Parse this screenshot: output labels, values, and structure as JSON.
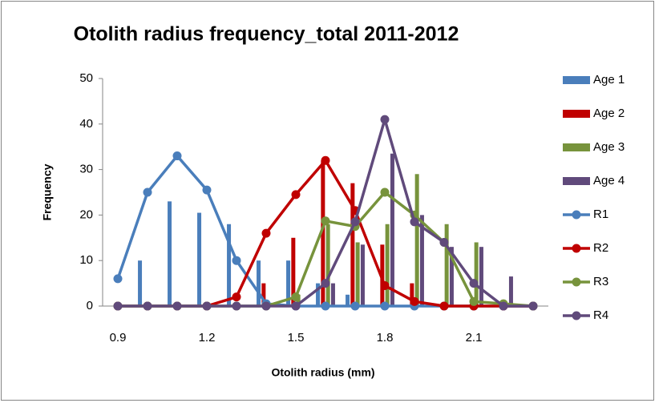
{
  "chart_data": {
    "type": "bar_line",
    "title": "Otolith radius frequency_total 2011-2012",
    "x_label": "Otolith radius (mm)",
    "y_label": "Frequency",
    "categories": [
      "0.9",
      null,
      null,
      "1.2",
      null,
      null,
      "1.5",
      null,
      null,
      "1.8",
      null,
      null,
      "2.1",
      null,
      null
    ],
    "ylim": [
      0,
      50
    ],
    "yticks": [
      0,
      10,
      20,
      30,
      40,
      50
    ],
    "grid": false,
    "legend": "right",
    "series": [
      {
        "name": "Age 1",
        "kind": "bar",
        "color": "#4a7ebb",
        "values": [
          0,
          10,
          23,
          20.5,
          18,
          10,
          10,
          5,
          2.5,
          0,
          0,
          0,
          0,
          0,
          0
        ]
      },
      {
        "name": "Age 2",
        "kind": "bar",
        "color": "#c00000",
        "values": [
          0,
          0,
          0,
          0,
          0,
          5,
          15,
          32,
          27,
          13.5,
          5,
          0,
          0,
          0,
          0
        ]
      },
      {
        "name": "Age 3",
        "kind": "bar",
        "color": "#77933c",
        "values": [
          0,
          0,
          0,
          0,
          0,
          0,
          2.5,
          18,
          14,
          18,
          29,
          18,
          14,
          0,
          0
        ]
      },
      {
        "name": "Age 4",
        "kind": "bar",
        "color": "#604a7b",
        "values": [
          0,
          0,
          0,
          0,
          0,
          0,
          0,
          5,
          13.5,
          33.5,
          20,
          13,
          13,
          6.5,
          0
        ]
      },
      {
        "name": "R1",
        "kind": "line",
        "color": "#4a7ebb",
        "values": [
          6,
          25,
          33,
          25.5,
          10,
          0.5,
          0,
          0,
          0,
          0,
          0,
          0,
          0,
          0,
          0
        ]
      },
      {
        "name": "R2",
        "kind": "line",
        "color": "#c00000",
        "values": [
          0,
          0,
          0,
          0,
          2,
          16,
          24.5,
          32,
          21,
          4.5,
          1,
          0,
          0,
          0,
          0
        ]
      },
      {
        "name": "R3",
        "kind": "line",
        "color": "#77933c",
        "values": [
          0,
          0,
          0,
          0,
          0,
          0,
          2,
          18.7,
          17.5,
          25,
          20,
          14,
          1,
          0.5,
          0
        ]
      },
      {
        "name": "R4",
        "kind": "line",
        "color": "#604a7b",
        "values": [
          0,
          0,
          0,
          0,
          0,
          0,
          0,
          5,
          18.5,
          41,
          18.5,
          14,
          5,
          0,
          0
        ]
      }
    ]
  }
}
